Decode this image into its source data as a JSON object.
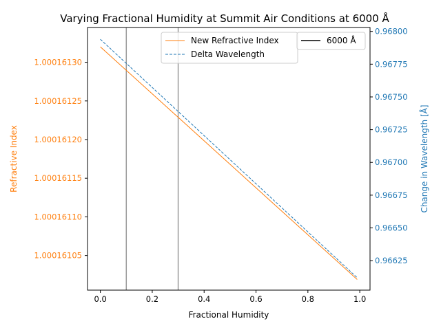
{
  "chart_data": {
    "type": "line",
    "title": "Varying Fractional Humidity at Summit Air Conditions at 6000 Å",
    "xlabel": "Fractional Humidity",
    "ylabel_left": "Refractive Index",
    "ylabel_right": "Change in Wavelength [Å]",
    "xlim": [
      -0.0495,
      1.0395
    ],
    "ylim_left": [
      1.0001610052,
      1.000161345
    ],
    "ylim_right": [
      0.966025,
      0.96803
    ],
    "x_ticks": [
      0.0,
      0.2,
      0.4,
      0.6,
      0.8,
      1.0
    ],
    "x_tick_labels": [
      "0.0",
      "0.2",
      "0.4",
      "0.6",
      "0.8",
      "1.0"
    ],
    "y_left_ticks": [
      1.00016105,
      1.0001611,
      1.00016115,
      1.0001612,
      1.00016125,
      1.0001613
    ],
    "y_left_tick_labels": [
      "1.00016105",
      "1.00016110",
      "1.00016115",
      "1.00016120",
      "1.00016125",
      "1.00016130"
    ],
    "y_right_ticks": [
      0.96625,
      0.9665,
      0.96675,
      0.967,
      0.96725,
      0.9675,
      0.96775,
      0.968
    ],
    "y_right_tick_labels": [
      "0.96625",
      "0.96650",
      "0.96675",
      "0.96700",
      "0.96725",
      "0.96750",
      "0.96775",
      "0.96800"
    ],
    "vlines": [
      0.1,
      0.3
    ],
    "series": [
      {
        "name": "New Refractive Index",
        "axis": "left",
        "style": "solid",
        "color": "#ff7f0e",
        "x": [
          0.0,
          0.99
        ],
        "y": [
          1.00016132,
          1.000161019
        ]
      },
      {
        "name": "Delta Wavelength",
        "axis": "right",
        "style": "dashed",
        "color": "#1f77b4",
        "x": [
          0.0,
          0.99
        ],
        "y": [
          0.96794,
          0.96612
        ]
      }
    ],
    "legend_2": {
      "name": "6000 Å",
      "color": "#000000",
      "style": "solid"
    },
    "legend": "top-center",
    "grid": false,
    "colors": {
      "left_axis": "#ff7f0e",
      "right_axis": "#1f77b4",
      "vline": "#999999"
    }
  }
}
